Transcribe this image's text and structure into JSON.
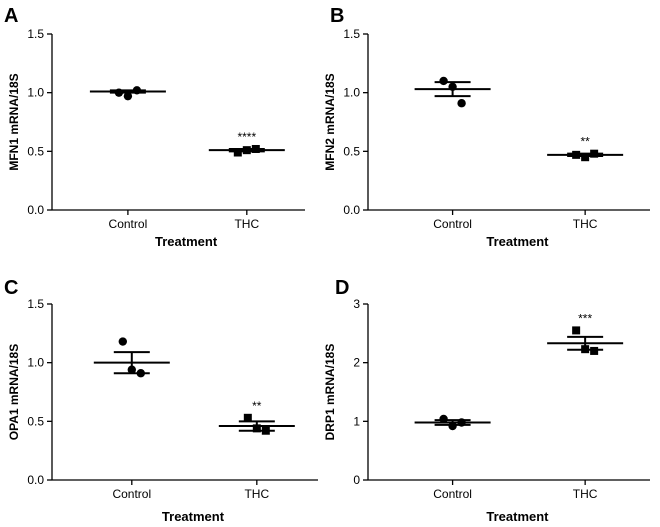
{
  "chart_data": [
    {
      "panel": "A",
      "type": "scatter",
      "ylabel": "MFN1 mRNA/18S",
      "xlabel": "Treatment",
      "categories": [
        "Control",
        "THC"
      ],
      "yticks": [
        "0.0",
        "0.5",
        "1.0",
        "1.5"
      ],
      "ylim": [
        0,
        1.5
      ],
      "points": [
        [
          1.0,
          0.97,
          1.02
        ],
        [
          0.49,
          0.51,
          0.52
        ]
      ],
      "means": [
        1.01,
        0.51
      ],
      "errors": [
        0.01,
        0.01
      ],
      "markers": [
        "circle",
        "square"
      ],
      "significance": [
        "",
        "****"
      ]
    },
    {
      "panel": "B",
      "type": "scatter",
      "ylabel": "MFN2 mRNA/18S",
      "xlabel": "Treatment",
      "categories": [
        "Control",
        "THC"
      ],
      "yticks": [
        "0.0",
        "0.5",
        "1.0",
        "1.5"
      ],
      "ylim": [
        0,
        1.5
      ],
      "points": [
        [
          1.1,
          1.05,
          0.91
        ],
        [
          0.47,
          0.45,
          0.48
        ]
      ],
      "means": [
        1.03,
        0.47
      ],
      "errors": [
        0.06,
        0.01
      ],
      "markers": [
        "circle",
        "square"
      ],
      "significance": [
        "",
        "**"
      ]
    },
    {
      "panel": "C",
      "type": "scatter",
      "ylabel": "OPA1 mRNA/18S",
      "xlabel": "Treatment",
      "categories": [
        "Control",
        "THC"
      ],
      "yticks": [
        "0.0",
        "0.5",
        "1.0",
        "1.5"
      ],
      "ylim": [
        0,
        1.5
      ],
      "points": [
        [
          1.18,
          0.94,
          0.91
        ],
        [
          0.53,
          0.44,
          0.42
        ]
      ],
      "means": [
        1.0,
        0.46
      ],
      "errors": [
        0.09,
        0.04
      ],
      "markers": [
        "circle",
        "square"
      ],
      "significance": [
        "",
        "**"
      ]
    },
    {
      "panel": "D",
      "type": "scatter",
      "ylabel": "DRP1 mRNA/18S",
      "xlabel": "Treatment",
      "categories": [
        "Control",
        "THC"
      ],
      "yticks": [
        "0",
        "1",
        "2",
        "3"
      ],
      "ylim": [
        0,
        3
      ],
      "points": [
        [
          1.04,
          0.92,
          0.98
        ],
        [
          2.55,
          2.23,
          2.2
        ]
      ],
      "means": [
        0.98,
        2.33
      ],
      "errors": [
        0.04,
        0.11
      ],
      "markers": [
        "circle",
        "square"
      ],
      "significance": [
        "",
        "***"
      ]
    }
  ]
}
